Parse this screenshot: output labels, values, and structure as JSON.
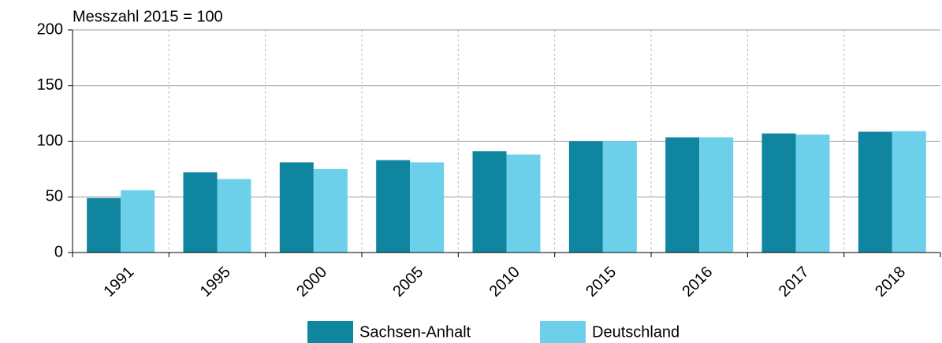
{
  "chart_data": {
    "type": "bar",
    "title": "Messzahl 2015 = 100",
    "categories": [
      "1991",
      "1995",
      "2000",
      "2005",
      "2010",
      "2015",
      "2016",
      "2017",
      "2018"
    ],
    "series": [
      {
        "name": "Sachsen-Anhalt",
        "color": "#0f85a0",
        "values": [
          49,
          72,
          81,
          83,
          91,
          100,
          103.5,
          107,
          108.5
        ]
      },
      {
        "name": "Deutschland",
        "color": "#6dd0eb",
        "values": [
          56,
          66,
          75,
          81,
          88,
          100,
          103.5,
          106,
          109
        ]
      }
    ],
    "ylim": [
      0,
      200
    ],
    "yticks": [
      0,
      50,
      100,
      150,
      200
    ],
    "grid": true,
    "legend": "bottom"
  }
}
